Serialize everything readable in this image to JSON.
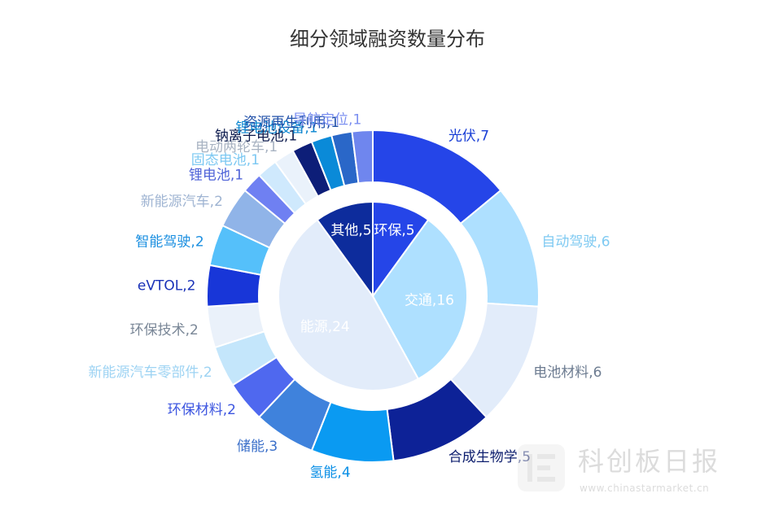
{
  "chart_data": {
    "type": "pie",
    "title": "细分领域融资数量分布",
    "inner": [
      {
        "name": "环保",
        "value": 5,
        "label": "环保,5",
        "color": "#2545e8"
      },
      {
        "name": "交通",
        "value": 16,
        "label": "交通,16",
        "color": "#aee0ff"
      },
      {
        "name": "能源",
        "value": 24,
        "label": "能源,24",
        "color": "#e2ecfa"
      },
      {
        "name": "其他",
        "value": 5,
        "label": "其他,5",
        "color": "#0d2c9c"
      }
    ],
    "outer": [
      {
        "name": "光伏",
        "value": 7,
        "label": "光伏,7",
        "color": "#2545e8",
        "label_color": "#1a3fd6"
      },
      {
        "name": "自动驾驶",
        "value": 6,
        "label": "自动驾驶,6",
        "color": "#aee0ff",
        "label_color": "#7fcaf2"
      },
      {
        "name": "电池材料",
        "value": 6,
        "label": "电池材料,6",
        "color": "#e2ecfa",
        "label_color": "#6d7c91"
      },
      {
        "name": "合成生物学",
        "value": 5,
        "label": "合成生物学,5",
        "color": "#0d2297",
        "label_color": "#0d1e6e"
      },
      {
        "name": "氢能",
        "value": 4,
        "label": "氢能,4",
        "color": "#0a9af2",
        "label_color": "#0a8fe6"
      },
      {
        "name": "储能",
        "value": 3,
        "label": "储能,3",
        "color": "#3f82dc",
        "label_color": "#3a6fc9"
      },
      {
        "name": "环保材料",
        "value": 2,
        "label": "环保材料,2",
        "color": "#4f68ef",
        "label_color": "#3d56e0"
      },
      {
        "name": "新能源汽车零部件",
        "value": 2,
        "label": "新能源汽车零部件,2",
        "color": "#c4e6fb",
        "label_color": "#9dd3f3"
      },
      {
        "name": "环保技术",
        "value": 2,
        "label": "环保技术,2",
        "color": "#eaf1fa",
        "label_color": "#7a8797"
      },
      {
        "name": "eVTOL",
        "value": 2,
        "label": "eVTOL,2",
        "color": "#1836d8",
        "label_color": "#1a32b8"
      },
      {
        "name": "智能驾驶",
        "value": 2,
        "label": "智能驾驶,2",
        "color": "#55c0fa",
        "label_color": "#1b8fe0"
      },
      {
        "name": "新能源汽车",
        "value": 2,
        "label": "新能源汽车,2",
        "color": "#90b4e8",
        "label_color": "#9fb4d2"
      },
      {
        "name": "锂电池",
        "value": 1,
        "label": "锂电池,1",
        "color": "#6f80f2",
        "label_color": "#4f63d8"
      },
      {
        "name": "固态电池",
        "value": 1,
        "label": "固态电池,1",
        "color": "#cfe9fd",
        "label_color": "#7cc8f2"
      },
      {
        "name": "电动两轮车",
        "value": 1,
        "label": "电动两轮车,1",
        "color": "#eaf2fb",
        "label_color": "#a8b3c2"
      },
      {
        "name": "钠离子电池",
        "value": 1,
        "label": "钠离子电池,1",
        "color": "#0d1e78",
        "label_color": "#0c1a4d"
      },
      {
        "name": "锂电池设备",
        "value": 1,
        "label": "锂电池设备,1",
        "color": "#0a8ad8",
        "label_color": "#0a86d0"
      },
      {
        "name": "资源再生利用",
        "value": 1,
        "label": "资源再生利用,1",
        "color": "#2a67c8",
        "label_color": "#1f4fa8"
      },
      {
        "name": "导航定位",
        "value": 1,
        "label": "导航定位,1",
        "color": "#6f86ee",
        "label_color": "#7b8ff0"
      }
    ]
  },
  "watermark": {
    "brand": "科创板日报",
    "url": "www.chinastarmarket.cn"
  }
}
